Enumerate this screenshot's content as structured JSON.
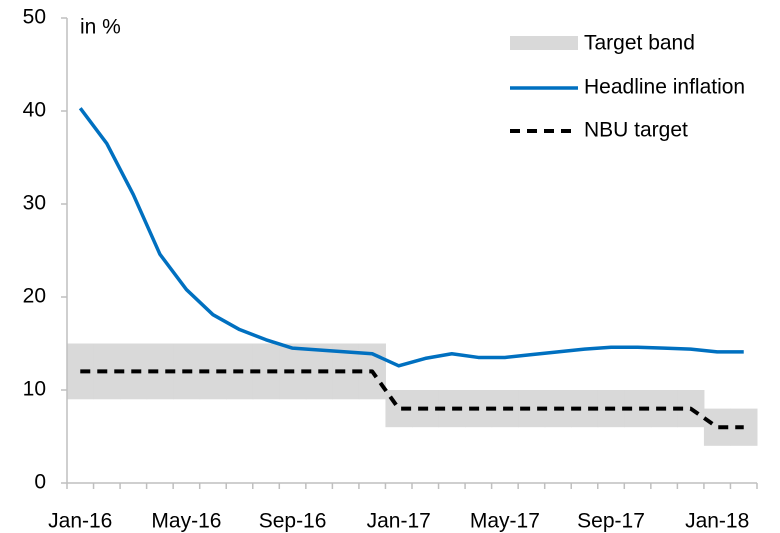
{
  "chart_data": {
    "type": "line",
    "annotation": "in %",
    "categories": [
      "Jan-16",
      null,
      null,
      null,
      "May-16",
      null,
      null,
      null,
      "Sep-16",
      null,
      null,
      null,
      "Jan-17",
      null,
      null,
      null,
      "May-17",
      null,
      null,
      null,
      "Sep-17",
      null,
      null,
      null,
      "Jan-18",
      null
    ],
    "band": {
      "name": "Target band",
      "color": "#d9d9d9",
      "low": [
        9,
        9,
        9,
        9,
        9,
        9,
        9,
        9,
        9,
        9,
        9,
        9,
        6,
        6,
        6,
        6,
        6,
        6,
        6,
        6,
        6,
        6,
        6,
        6,
        4,
        4
      ],
      "high": [
        15,
        15,
        15,
        15,
        15,
        15,
        15,
        15,
        15,
        15,
        15,
        15,
        10,
        10,
        10,
        10,
        10,
        10,
        10,
        10,
        10,
        10,
        10,
        10,
        8,
        8
      ]
    },
    "series": [
      {
        "name": "Headline inflation",
        "color": "#0070c0",
        "dash": false,
        "values": [
          40.3,
          36.5,
          31,
          24.6,
          20.8,
          18.1,
          16.5,
          15.4,
          14.5,
          14.3,
          14.1,
          13.9,
          12.6,
          13.4,
          13.9,
          13.5,
          13.5,
          13.8,
          14.1,
          14.4,
          14.6,
          14.6,
          14.5,
          14.4,
          14.1,
          14.1
        ]
      },
      {
        "name": "NBU target",
        "color": "#000000",
        "dash": true,
        "values": [
          12,
          12,
          12,
          12,
          12,
          12,
          12,
          12,
          12,
          12,
          12,
          12,
          8,
          8,
          8,
          8,
          8,
          8,
          8,
          8,
          8,
          8,
          8,
          8,
          6,
          6
        ]
      }
    ],
    "ylim": [
      0,
      50
    ],
    "yticks": [
      0,
      10,
      20,
      30,
      40,
      50
    ],
    "grid": false,
    "legend": "top-right"
  }
}
